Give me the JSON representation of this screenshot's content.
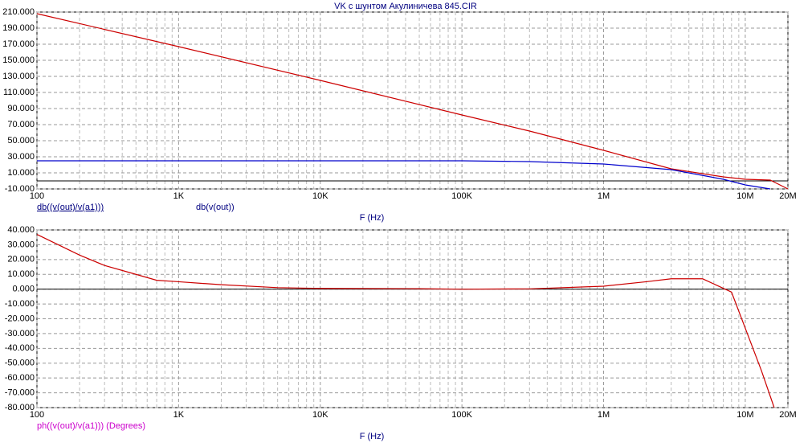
{
  "chart_data": [
    {
      "type": "line",
      "title": "VK с шунтом  Акулиничева 845.CIR",
      "x_label": "F (Hz)",
      "log_x": true,
      "grid": true,
      "xlim": [
        100,
        20000000
      ],
      "xticks": [
        100,
        {
          "value": 1000,
          "label": "1K"
        },
        {
          "value": 10000,
          "label": "10K"
        },
        {
          "value": 100000,
          "label": "100K"
        },
        {
          "value": 1000000,
          "label": "1M"
        },
        {
          "value": 10000000,
          "label": "10M"
        },
        {
          "value": 20000000,
          "label": "20M"
        }
      ],
      "ylim": [
        -10,
        210
      ],
      "yticks": [
        {
          "value": 210,
          "label": "210.000"
        },
        {
          "value": 190,
          "label": "190.000"
        },
        {
          "value": 170,
          "label": "170.000"
        },
        {
          "value": 150,
          "label": "150.000"
        },
        {
          "value": 130,
          "label": "130.000"
        },
        {
          "value": 110,
          "label": "110.000"
        },
        {
          "value": 90,
          "label": "90.000"
        },
        {
          "value": 70,
          "label": "70.000"
        },
        {
          "value": 50,
          "label": "50.000"
        },
        {
          "value": 30,
          "label": "30.000"
        },
        {
          "value": 10,
          "label": "10.000"
        },
        {
          "value": -10,
          "label": "-10.000"
        }
      ],
      "x": [
        100,
        1000,
        10000,
        100000,
        300000,
        1000000,
        3000000,
        7000000,
        10000000,
        15000000,
        20000000
      ],
      "series": [
        {
          "name": "db((v(out)/v(a1)))",
          "color": "#cc0000",
          "values": [
            208,
            167,
            125,
            82,
            62,
            38,
            15,
            5,
            2,
            1,
            -10
          ]
        },
        {
          "name": "db(v(out))",
          "color": "#0000cc",
          "values": [
            25,
            25,
            25,
            25,
            24,
            21,
            14,
            2,
            -5,
            -10,
            null
          ]
        }
      ]
    },
    {
      "type": "line",
      "x_label": "F (Hz)",
      "log_x": true,
      "grid": true,
      "xlim": [
        100,
        20000000
      ],
      "xticks": [
        100,
        {
          "value": 1000,
          "label": "1K"
        },
        {
          "value": 10000,
          "label": "10K"
        },
        {
          "value": 100000,
          "label": "100K"
        },
        {
          "value": 1000000,
          "label": "1M"
        },
        {
          "value": 10000000,
          "label": "10M"
        },
        {
          "value": 20000000,
          "label": "20M"
        }
      ],
      "ylim": [
        -80,
        40
      ],
      "yticks": [
        {
          "value": 40,
          "label": "40.000"
        },
        {
          "value": 30,
          "label": "30.000"
        },
        {
          "value": 20,
          "label": "20.000"
        },
        {
          "value": 10,
          "label": "10.000"
        },
        {
          "value": 0,
          "label": "0.000"
        },
        {
          "value": -10,
          "label": "-10.000"
        },
        {
          "value": -20,
          "label": "-20.000"
        },
        {
          "value": -30,
          "label": "-30.000"
        },
        {
          "value": -40,
          "label": "-40.000"
        },
        {
          "value": -50,
          "label": "-50.000"
        },
        {
          "value": -60,
          "label": "-60.000"
        },
        {
          "value": -70,
          "label": "-70.000"
        },
        {
          "value": -80,
          "label": "-80.000"
        }
      ],
      "x": [
        100,
        200,
        300,
        500,
        700,
        1000,
        2000,
        5000,
        10000,
        50000,
        100000,
        300000,
        1000000,
        2000000,
        3000000,
        5000000,
        8000000,
        13000000,
        16000000
      ],
      "series": [
        {
          "name": "ph((v(out)/v(a1))) (Degrees)",
          "color": "#cc0000",
          "legend_color": "#cc00cc",
          "values": [
            37,
            23,
            16,
            10,
            6,
            5,
            3,
            1,
            0.5,
            0.3,
            0,
            0.2,
            2,
            5,
            7,
            7,
            -2,
            -55,
            -80
          ]
        }
      ]
    }
  ]
}
